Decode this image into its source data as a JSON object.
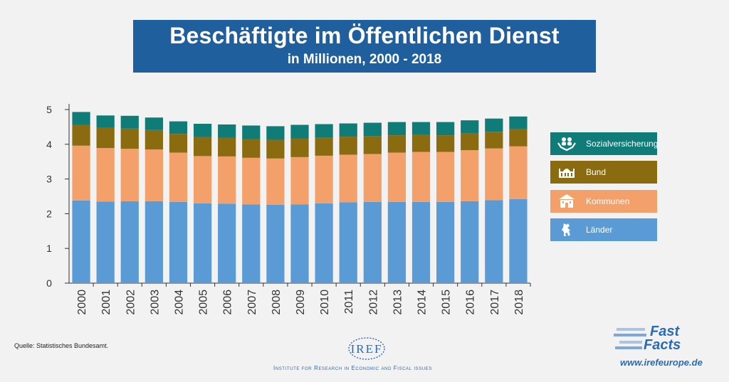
{
  "header": {
    "title": "Beschäftigte im Öffentlichen Dienst",
    "subtitle": "in Millionen, 2000 - 2018"
  },
  "chart_data": {
    "type": "bar",
    "stacked": true,
    "categories": [
      "2000",
      "2001",
      "2002",
      "2003",
      "2004",
      "2005",
      "2006",
      "2007",
      "2008",
      "2009",
      "2010",
      "2011",
      "2012",
      "2013",
      "2014",
      "2015",
      "2016",
      "2017",
      "2018"
    ],
    "series": [
      {
        "name": "Länder",
        "color": "#5b9bd5",
        "icon": "bear-icon",
        "values": [
          2.38,
          2.35,
          2.36,
          2.36,
          2.34,
          2.3,
          2.29,
          2.27,
          2.26,
          2.27,
          2.3,
          2.33,
          2.34,
          2.34,
          2.34,
          2.34,
          2.36,
          2.39,
          2.42
        ]
      },
      {
        "name": "Kommunen",
        "color": "#f4a06a",
        "icon": "town-hall-icon",
        "values": [
          1.58,
          1.54,
          1.51,
          1.49,
          1.42,
          1.36,
          1.36,
          1.34,
          1.33,
          1.36,
          1.37,
          1.37,
          1.38,
          1.42,
          1.44,
          1.44,
          1.47,
          1.49,
          1.52
        ]
      },
      {
        "name": "Bund",
        "color": "#8b6b0f",
        "icon": "parliament-icon",
        "values": [
          0.6,
          0.58,
          0.58,
          0.56,
          0.54,
          0.55,
          0.54,
          0.54,
          0.54,
          0.54,
          0.53,
          0.52,
          0.52,
          0.5,
          0.49,
          0.48,
          0.48,
          0.48,
          0.49
        ]
      },
      {
        "name": "Sozialversicherung",
        "color": "#0f7c78",
        "icon": "care-hands-icon",
        "values": [
          0.37,
          0.36,
          0.37,
          0.36,
          0.36,
          0.38,
          0.38,
          0.39,
          0.39,
          0.39,
          0.38,
          0.38,
          0.38,
          0.38,
          0.37,
          0.38,
          0.38,
          0.38,
          0.37
        ]
      }
    ],
    "ylim": [
      0,
      5
    ],
    "yticks": [
      0,
      1,
      2,
      3,
      4,
      5
    ],
    "grid": false,
    "legend_position": "right"
  },
  "footer": {
    "source": "Quelle: Statistisches Bundesamt.",
    "iref_logo_text": "IREF",
    "iref_tagline": "Institute for Research in Economic and Fiscal issues",
    "ff_line1": "Fast",
    "ff_line2": "Facts",
    "url": "www.irefeurope.de"
  }
}
